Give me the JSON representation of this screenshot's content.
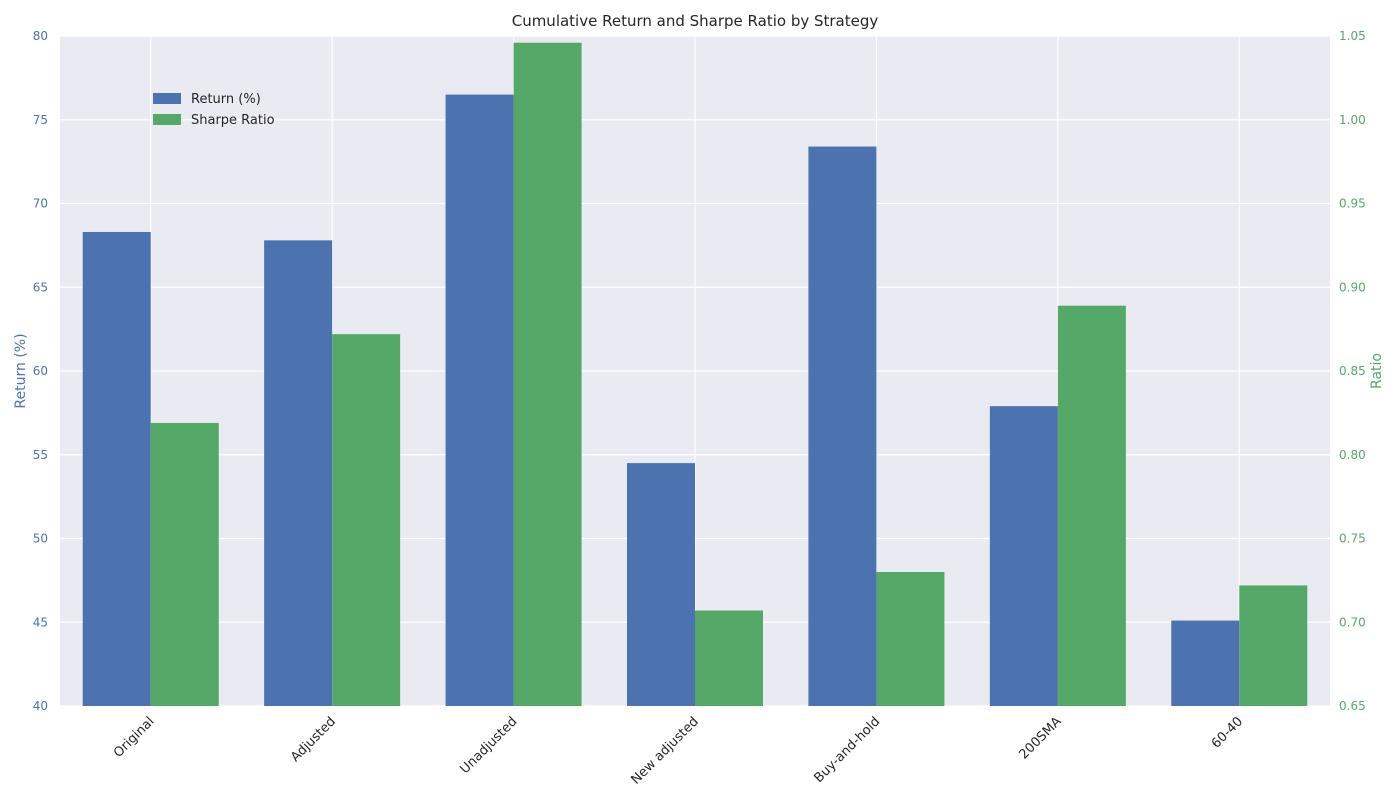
{
  "chart_data": {
    "type": "bar",
    "title": "Cumulative Return and Sharpe Ratio by Strategy",
    "categories": [
      "Original",
      "Adjusted",
      "Unadjusted",
      "New adjusted",
      "Buy-and-hold",
      "200SMA",
      "60-40"
    ],
    "series": [
      {
        "name": "Return (%)",
        "axis": "left",
        "color": "#4c72b0",
        "values": [
          68.3,
          67.8,
          76.5,
          54.5,
          73.4,
          57.9,
          45.1
        ]
      },
      {
        "name": "Sharpe Ratio",
        "axis": "right",
        "color": "#55a868",
        "values": [
          0.819,
          0.872,
          1.046,
          0.707,
          0.73,
          0.889,
          0.722
        ]
      }
    ],
    "y_left": {
      "label": "Return (%)",
      "color": "#4c72b0",
      "lim": [
        40,
        80
      ],
      "ticks": [
        "40",
        "45",
        "50",
        "55",
        "60",
        "65",
        "70",
        "75",
        "80"
      ]
    },
    "y_right": {
      "label": "Ratio",
      "color": "#55a868",
      "lim": [
        0.65,
        1.05
      ],
      "ticks": [
        "0.65",
        "0.70",
        "0.75",
        "0.80",
        "0.85",
        "0.90",
        "0.95",
        "1.00",
        "1.05"
      ]
    },
    "grid": true,
    "legend_position": "upper-left"
  }
}
